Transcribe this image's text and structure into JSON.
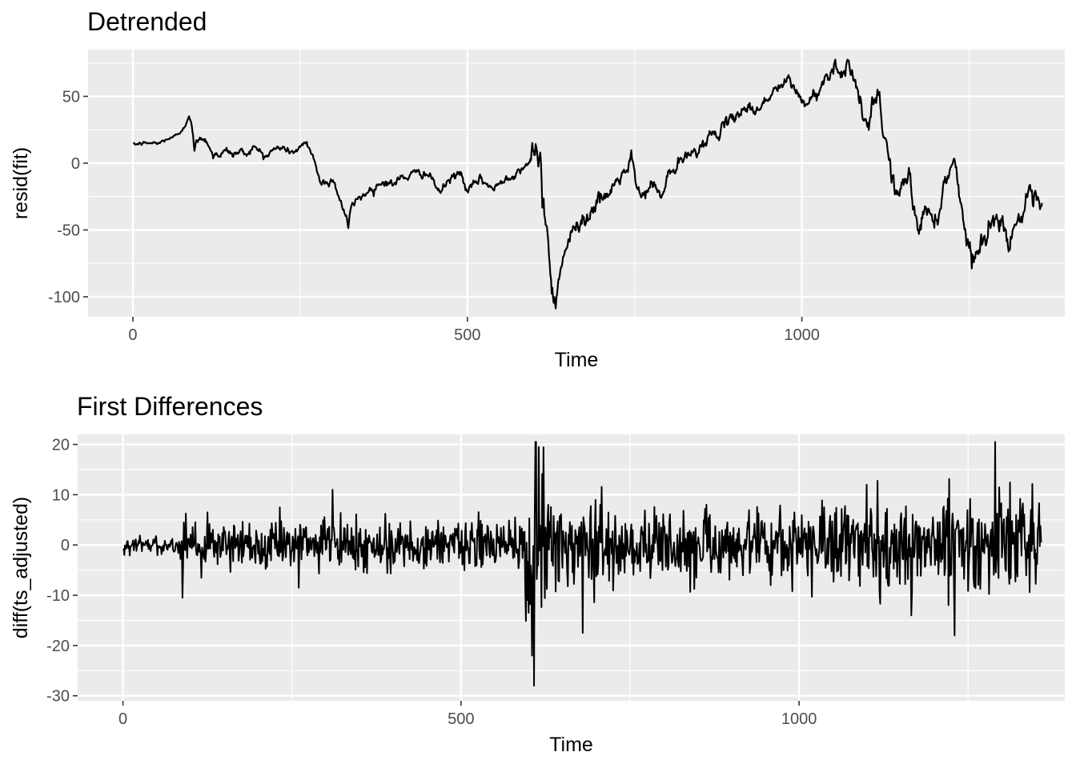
{
  "chart_data": [
    {
      "type": "line",
      "title": "Detrended",
      "xlabel": "Time",
      "ylabel": "resid(fit)",
      "xlim": [
        -67,
        1393
      ],
      "ylim": [
        -115,
        85
      ],
      "x_ticks": [
        0,
        500,
        1000
      ],
      "x_tick_labels": [
        "0",
        "500",
        "1000"
      ],
      "y_ticks": [
        50,
        0,
        -50,
        -100
      ],
      "y_tick_labels": [
        "50",
        "0",
        "-50",
        "-100"
      ],
      "grid": true,
      "legend": "none",
      "line_color": "#000000",
      "panel_color": "#ebebeb",
      "n_points": 1359,
      "series_anchor_points": [
        [
          1,
          14
        ],
        [
          20,
          15
        ],
        [
          40,
          15
        ],
        [
          50,
          18
        ],
        [
          60,
          19
        ],
        [
          70,
          23
        ],
        [
          80,
          30
        ],
        [
          85,
          33
        ],
        [
          88,
          27
        ],
        [
          90,
          22
        ],
        [
          92,
          8
        ],
        [
          95,
          16
        ],
        [
          100,
          20
        ],
        [
          105,
          18
        ],
        [
          110,
          17
        ],
        [
          115,
          12
        ],
        [
          120,
          4
        ],
        [
          125,
          9
        ],
        [
          130,
          5
        ],
        [
          140,
          10
        ],
        [
          150,
          6
        ],
        [
          160,
          9
        ],
        [
          170,
          7
        ],
        [
          180,
          12
        ],
        [
          190,
          9
        ],
        [
          200,
          5
        ],
        [
          210,
          10
        ],
        [
          220,
          12
        ],
        [
          230,
          10
        ],
        [
          240,
          8
        ],
        [
          250,
          12
        ],
        [
          260,
          14
        ],
        [
          265,
          10
        ],
        [
          270,
          5
        ],
        [
          275,
          -5
        ],
        [
          280,
          -15
        ],
        [
          290,
          -14
        ],
        [
          300,
          -13
        ],
        [
          305,
          -20
        ],
        [
          310,
          -28
        ],
        [
          315,
          -35
        ],
        [
          320,
          -42
        ],
        [
          322,
          -48
        ],
        [
          325,
          -37
        ],
        [
          330,
          -30
        ],
        [
          340,
          -25
        ],
        [
          350,
          -22
        ],
        [
          360,
          -18
        ],
        [
          370,
          -15
        ],
        [
          380,
          -14
        ],
        [
          390,
          -16
        ],
        [
          400,
          -11
        ],
        [
          410,
          -10
        ],
        [
          420,
          -8
        ],
        [
          430,
          -7
        ],
        [
          440,
          -8
        ],
        [
          450,
          -15
        ],
        [
          460,
          -22
        ],
        [
          470,
          -14
        ],
        [
          480,
          -10
        ],
        [
          490,
          -7
        ],
        [
          500,
          -22
        ],
        [
          510,
          -16
        ],
        [
          520,
          -12
        ],
        [
          530,
          -16
        ],
        [
          540,
          -20
        ],
        [
          550,
          -14
        ],
        [
          560,
          -10
        ],
        [
          570,
          -9
        ],
        [
          580,
          -4
        ],
        [
          590,
          0
        ],
        [
          600,
          2
        ],
        [
          605,
          6
        ],
        [
          610,
          4
        ],
        [
          612,
          -20
        ],
        [
          615,
          -35
        ],
        [
          618,
          -50
        ],
        [
          622,
          -70
        ],
        [
          626,
          -90
        ],
        [
          630,
          -100
        ],
        [
          632,
          -106
        ],
        [
          636,
          -85
        ],
        [
          640,
          -75
        ],
        [
          650,
          -60
        ],
        [
          660,
          -50
        ],
        [
          670,
          -40
        ],
        [
          680,
          -42
        ],
        [
          690,
          -30
        ],
        [
          700,
          -28
        ],
        [
          710,
          -25
        ],
        [
          720,
          -15
        ],
        [
          730,
          -10
        ],
        [
          740,
          -5
        ],
        [
          745,
          5
        ],
        [
          750,
          -10
        ],
        [
          755,
          -20
        ],
        [
          760,
          -25
        ],
        [
          770,
          -20
        ],
        [
          780,
          -15
        ],
        [
          790,
          -28
        ],
        [
          800,
          -8
        ],
        [
          810,
          -5
        ],
        [
          820,
          2
        ],
        [
          830,
          5
        ],
        [
          840,
          10
        ],
        [
          850,
          12
        ],
        [
          860,
          20
        ],
        [
          870,
          22
        ],
        [
          880,
          25
        ],
        [
          890,
          30
        ],
        [
          900,
          35
        ],
        [
          910,
          40
        ],
        [
          920,
          42
        ],
        [
          930,
          38
        ],
        [
          940,
          45
        ],
        [
          950,
          48
        ],
        [
          960,
          55
        ],
        [
          970,
          58
        ],
        [
          980,
          62
        ],
        [
          990,
          55
        ],
        [
          1000,
          48
        ],
        [
          1005,
          42
        ],
        [
          1010,
          45
        ],
        [
          1020,
          52
        ],
        [
          1030,
          58
        ],
        [
          1040,
          68
        ],
        [
          1050,
          74
        ],
        [
          1060,
          66
        ],
        [
          1070,
          76
        ],
        [
          1075,
          70
        ],
        [
          1080,
          62
        ],
        [
          1085,
          48
        ],
        [
          1090,
          38
        ],
        [
          1095,
          30
        ],
        [
          1100,
          25
        ],
        [
          1105,
          40
        ],
        [
          1110,
          48
        ],
        [
          1115,
          50
        ],
        [
          1120,
          30
        ],
        [
          1125,
          18
        ],
        [
          1130,
          5
        ],
        [
          1135,
          -10
        ],
        [
          1140,
          -20
        ],
        [
          1145,
          -25
        ],
        [
          1150,
          -18
        ],
        [
          1155,
          -12
        ],
        [
          1160,
          -8
        ],
        [
          1165,
          -25
        ],
        [
          1170,
          -42
        ],
        [
          1175,
          -50
        ],
        [
          1180,
          -40
        ],
        [
          1190,
          -35
        ],
        [
          1200,
          -45
        ],
        [
          1210,
          -22
        ],
        [
          1215,
          -15
        ],
        [
          1220,
          -5
        ],
        [
          1225,
          5
        ],
        [
          1230,
          -5
        ],
        [
          1235,
          -20
        ],
        [
          1240,
          -35
        ],
        [
          1245,
          -55
        ],
        [
          1250,
          -62
        ],
        [
          1255,
          -68
        ],
        [
          1260,
          -70
        ],
        [
          1265,
          -62
        ],
        [
          1270,
          -55
        ],
        [
          1275,
          -60
        ],
        [
          1280,
          -48
        ],
        [
          1290,
          -40
        ],
        [
          1300,
          -45
        ],
        [
          1305,
          -55
        ],
        [
          1310,
          -58
        ],
        [
          1315,
          -50
        ],
        [
          1320,
          -44
        ],
        [
          1330,
          -38
        ],
        [
          1340,
          -25
        ],
        [
          1345,
          -30
        ],
        [
          1350,
          -28
        ],
        [
          1355,
          -32
        ],
        [
          1359,
          -33
        ]
      ]
    },
    {
      "type": "line",
      "title": "First Differences",
      "xlabel": "Time",
      "ylabel": "diff(ts_adjusted)",
      "xlim": [
        -67,
        1393
      ],
      "ylim": [
        -31,
        22
      ],
      "x_ticks": [
        0,
        500,
        1000
      ],
      "x_tick_labels": [
        "0",
        "500",
        "1000"
      ],
      "y_ticks": [
        20,
        10,
        0,
        -10,
        -20,
        -30
      ],
      "y_tick_labels": [
        "20",
        "10",
        "0",
        "-10",
        "-20",
        "-30"
      ],
      "grid": true,
      "legend": "none",
      "line_color": "#000000",
      "panel_color": "#ebebeb",
      "n_points": 1358,
      "notable_points": [
        [
          88,
          -10.5
        ],
        [
          90,
          4.5
        ],
        [
          125,
          6.5
        ],
        [
          260,
          -8.5
        ],
        [
          310,
          11
        ],
        [
          600,
          -13.5
        ],
        [
          605,
          -22
        ],
        [
          608,
          -28
        ],
        [
          610,
          20.5
        ],
        [
          615,
          19.5
        ],
        [
          680,
          -17.5
        ],
        [
          1100,
          12
        ],
        [
          1230,
          -18
        ],
        [
          1290,
          20.5
        ]
      ]
    }
  ]
}
